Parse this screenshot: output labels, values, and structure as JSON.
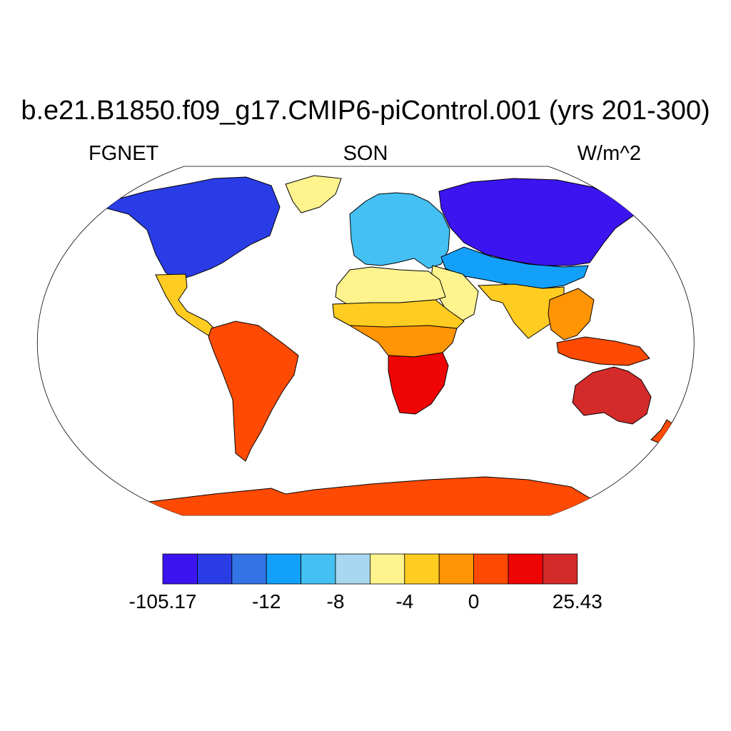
{
  "title": "b.e21.B1850.f09_g17.CMIP6-piControl.001 (yrs 201-300)",
  "subtitle_left": "FGNET",
  "subtitle_center": "SON",
  "subtitle_right": "W/m^2",
  "map": {
    "projection": "robinson",
    "ocean_fill": "#ffffff",
    "coastline_color": "#000000",
    "regions": [
      {
        "name": "north-america",
        "level": 1
      },
      {
        "name": "greenland",
        "level": 6
      },
      {
        "name": "central-america",
        "level": 7
      },
      {
        "name": "south-america",
        "level": 9
      },
      {
        "name": "europe",
        "level": 4
      },
      {
        "name": "siberia",
        "level": 0
      },
      {
        "name": "central-asia",
        "level": 3
      },
      {
        "name": "north-africa",
        "level": 6
      },
      {
        "name": "sahel",
        "level": 7
      },
      {
        "name": "central-africa",
        "level": 8
      },
      {
        "name": "southern-africa",
        "level": 10
      },
      {
        "name": "middle-east",
        "level": 6
      },
      {
        "name": "india",
        "level": 7
      },
      {
        "name": "southeast-asia",
        "level": 8
      },
      {
        "name": "indonesia",
        "level": 9
      },
      {
        "name": "australia",
        "level": 11
      },
      {
        "name": "new-zealand",
        "level": 9
      },
      {
        "name": "antarctica",
        "level": 9
      }
    ]
  },
  "colorbar": {
    "colors": [
      "#3c14f0",
      "#2a3ce6",
      "#3274e6",
      "#12a0fa",
      "#44c0f2",
      "#a8d8f0",
      "#fff38e",
      "#ffcc22",
      "#ff9404",
      "#ff4a04",
      "#ee0404",
      "#d42a2a"
    ],
    "labels": [
      {
        "text": "-105.17",
        "boundary": 0
      },
      {
        "text": "-12",
        "boundary": 3
      },
      {
        "text": "-8",
        "boundary": 5
      },
      {
        "text": "-4",
        "boundary": 7
      },
      {
        "text": "0",
        "boundary": 9
      },
      {
        "text": "25.43",
        "boundary": 12
      }
    ]
  }
}
